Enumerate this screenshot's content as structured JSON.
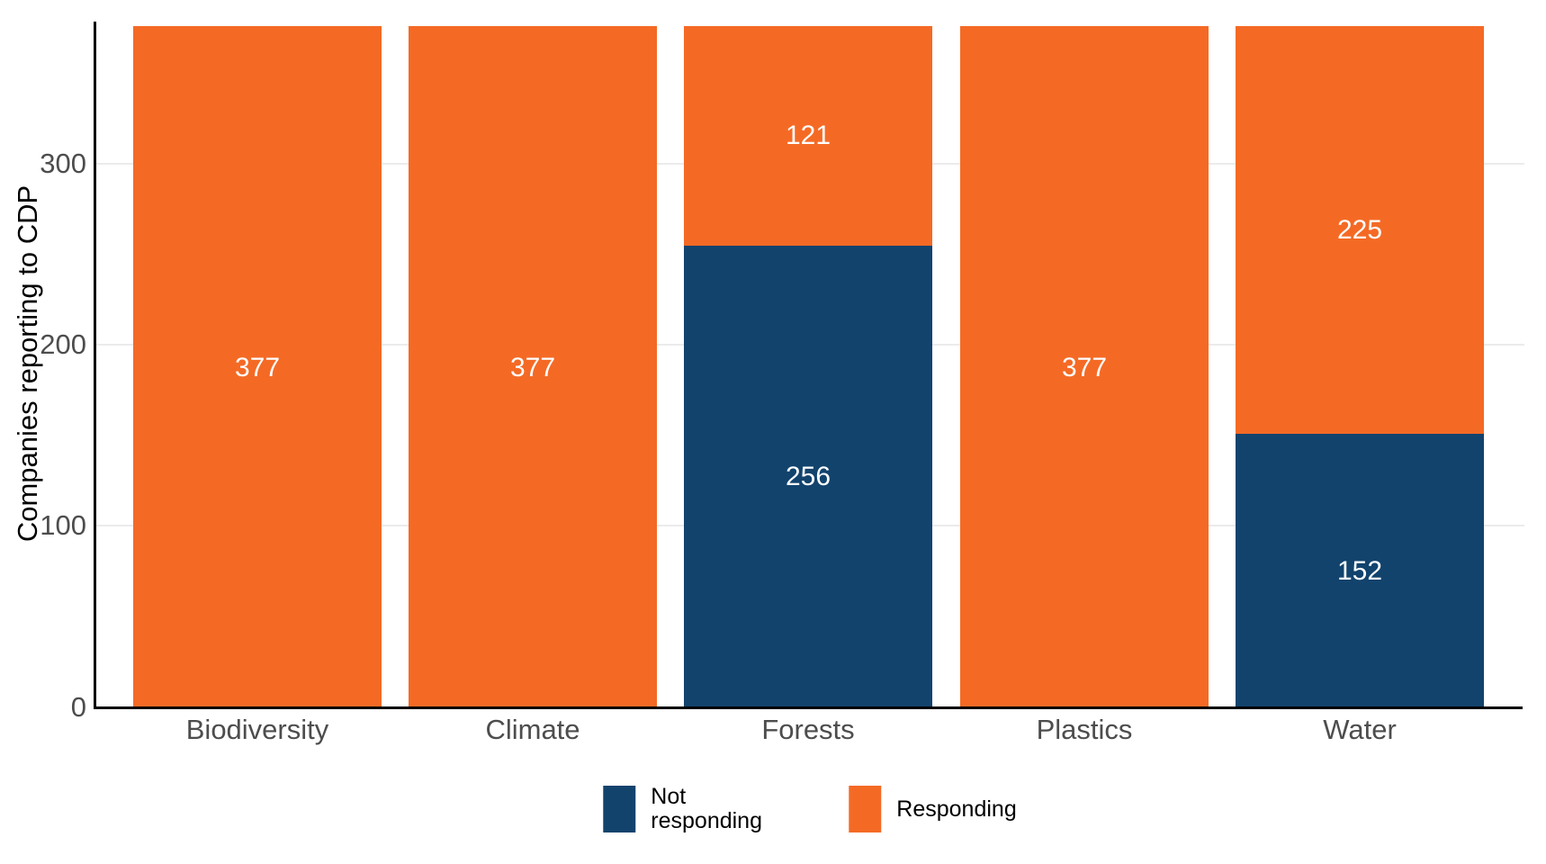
{
  "chart_data": {
    "type": "bar",
    "stacked": true,
    "title": "",
    "xlabel": "",
    "ylabel": "Companies reporting to CDP",
    "categories": [
      "Biodiversity",
      "Climate",
      "Forests",
      "Plastics",
      "Water"
    ],
    "series": [
      {
        "name": "Not responding",
        "color": "#12436D",
        "values": [
          0,
          0,
          256,
          0,
          152
        ]
      },
      {
        "name": "Responding",
        "color": "#F46A25",
        "values": [
          377,
          377,
          121,
          377,
          225
        ]
      }
    ],
    "totals": [
      377,
      377,
      377,
      377,
      377
    ],
    "yticks": [
      0,
      100,
      200,
      300
    ],
    "ylim": [
      0,
      378
    ],
    "grid": "horizontal-major",
    "legend_position": "bottom"
  },
  "colors": {
    "not_responding": "#12436D",
    "responding": "#F46A25",
    "gridline": "#EBEBEB",
    "axis_line": "#000000",
    "axis_text": "#4D4D4D",
    "value_label": "#FFFFFF",
    "background": "#FFFFFF"
  }
}
